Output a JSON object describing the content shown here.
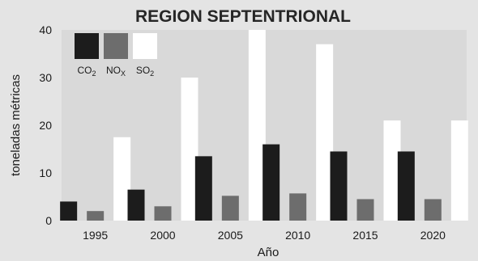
{
  "chart_data": {
    "type": "bar",
    "title": "REGION SEPTENTRIONAL",
    "xlabel": "Año",
    "ylabel": "toneladas métricas",
    "categories": [
      "1995",
      "2000",
      "2005",
      "2010",
      "2015",
      "2020"
    ],
    "series": [
      {
        "name": "CO2",
        "label_main": "CO",
        "label_sub": "2",
        "color": "#1c1c1c",
        "values": [
          4,
          6.5,
          13.5,
          16,
          14.5,
          14.5
        ]
      },
      {
        "name": "NOX",
        "label_main": "NO",
        "label_sub": "X",
        "color": "#6d6d6d",
        "values": [
          2,
          3,
          5.2,
          5.7,
          4.5,
          4.5
        ]
      },
      {
        "name": "SO2",
        "label_main": "SO",
        "label_sub": "2",
        "color": "#ffffff",
        "values": [
          17.5,
          30,
          40,
          37,
          21,
          21
        ]
      }
    ],
    "ylim": [
      0,
      40
    ],
    "yticks": [
      0,
      10,
      20,
      30,
      40
    ],
    "grid": false,
    "legend": "top-left",
    "colors": {
      "background": "#e4e4e4",
      "plot_background": "#d9d9d9"
    }
  }
}
